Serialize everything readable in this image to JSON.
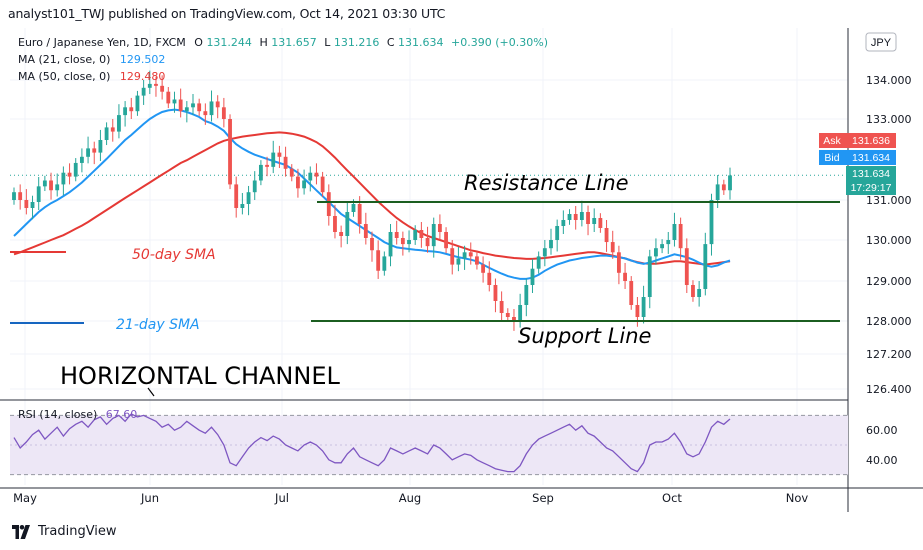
{
  "header": {
    "text": "analyst101_TWJ published on TradingView.com, Oct 14, 2021 03:30 UTC"
  },
  "footer": {
    "brand": "TradingView"
  },
  "colors": {
    "up": "#26a69a",
    "down": "#ef5350",
    "ma21": "#2196f3",
    "ma50": "#e53935",
    "line": "#1b5e20",
    "rsi": "#7e57c2",
    "rsi_band": "#ede7f6",
    "grid": "#f0f3fa",
    "axis_text": "#131722",
    "ask_bg": "#ef5350",
    "bid_bg": "#2196f3",
    "last_bg": "#26a69a"
  },
  "legend": {
    "symbol": "Euro / Japanese Yen, 1D, FXCM",
    "o_label": "O",
    "o_value": "131.244",
    "h_label": "H",
    "h_value": "131.657",
    "l_label": "L",
    "l_value": "131.216",
    "c_label": "C",
    "c_value": "131.634",
    "change": "+0.390 (+0.30%)",
    "ma21_label": "MA (21, close, 0)",
    "ma21_value": "129.502",
    "ma50_label": "MA (50, close, 0)",
    "ma50_value": "129.480",
    "rsi_label": "RSI (14, close)",
    "rsi_value": "67.60"
  },
  "annotations": {
    "resistance": "Resistance Line",
    "support": "Support Line",
    "sma50": "50-day SMA",
    "sma21": "21-day SMA",
    "channel": "HORIZONTAL CHANNEL"
  },
  "price_axis": {
    "currency": "JPY",
    "ask_label": "Ask",
    "ask_value": "131.636",
    "bid_label": "Bid",
    "bid_value": "131.634",
    "last_value": "131.634",
    "countdown": "17:29:17"
  },
  "chart_data": {
    "type": "candlestick",
    "title": "Euro / Japanese Yen, 1D, FXCM",
    "y_ticks": [
      {
        "label": "134.000",
        "value": 134.0
      },
      {
        "label": "133.000",
        "value": 133.0
      },
      {
        "label": "131.000",
        "value": 131.0
      },
      {
        "label": "130.000",
        "value": 130.0
      },
      {
        "label": "129.000",
        "value": 129.0
      },
      {
        "label": "128.000",
        "value": 128.0
      },
      {
        "label": "127.200",
        "value": 127.2
      },
      {
        "label": "126.400",
        "value": 126.4
      }
    ],
    "x_ticks": [
      "May",
      "Jun",
      "Jul",
      "Aug",
      "Sep",
      "Oct",
      "Nov"
    ],
    "ylim": [
      126.3,
      135.0
    ],
    "closes": [
      131.2,
      131.0,
      130.8,
      130.95,
      131.35,
      131.5,
      131.25,
      131.4,
      131.7,
      131.6,
      131.95,
      132.1,
      132.3,
      132.2,
      132.5,
      132.8,
      132.7,
      133.1,
      133.3,
      133.2,
      133.6,
      133.8,
      133.9,
      133.85,
      133.7,
      133.4,
      133.5,
      133.2,
      133.3,
      133.4,
      133.2,
      133.1,
      133.45,
      133.3,
      133.0,
      131.4,
      130.8,
      130.9,
      131.2,
      131.5,
      131.9,
      131.85,
      132.2,
      132.1,
      131.8,
      131.6,
      131.3,
      131.5,
      131.7,
      131.6,
      131.2,
      130.6,
      130.2,
      130.1,
      130.7,
      130.9,
      130.4,
      130.05,
      129.75,
      129.25,
      129.6,
      130.2,
      130.05,
      129.9,
      130.0,
      130.25,
      130.05,
      129.85,
      130.4,
      130.2,
      129.8,
      129.4,
      129.55,
      129.7,
      129.6,
      129.4,
      129.2,
      128.9,
      128.5,
      128.2,
      128.1,
      128.0,
      128.4,
      128.9,
      129.3,
      129.6,
      129.8,
      130.0,
      130.35,
      130.5,
      130.65,
      130.5,
      130.7,
      130.4,
      130.55,
      130.3,
      129.95,
      129.7,
      129.2,
      129.0,
      128.4,
      128.1,
      128.6,
      129.6,
      129.8,
      129.9,
      130.0,
      130.4,
      129.8,
      128.9,
      128.6,
      128.8,
      129.9,
      131.0,
      131.4,
      131.25,
      131.63
    ],
    "ma21": [
      130.1,
      130.25,
      130.4,
      130.55,
      130.7,
      130.82,
      130.92,
      131.0,
      131.1,
      131.2,
      131.32,
      131.45,
      131.6,
      131.75,
      131.9,
      132.05,
      132.2,
      132.35,
      132.5,
      132.62,
      132.75,
      132.88,
      133.0,
      133.1,
      133.18,
      133.22,
      133.24,
      133.22,
      133.18,
      133.12,
      133.05,
      132.95,
      132.9,
      132.82,
      132.72,
      132.55,
      132.4,
      132.3,
      132.22,
      132.15,
      132.1,
      132.05,
      132.0,
      131.95,
      131.9,
      131.8,
      131.7,
      131.55,
      131.4,
      131.25,
      131.1,
      130.95,
      130.8,
      130.65,
      130.55,
      130.45,
      130.35,
      130.25,
      130.15,
      130.05,
      129.95,
      129.88,
      129.82,
      129.8,
      129.78,
      129.76,
      129.75,
      129.73,
      129.72,
      129.7,
      129.66,
      129.62,
      129.58,
      129.55,
      129.52,
      129.48,
      129.4,
      129.32,
      129.25,
      129.18,
      129.12,
      129.08,
      129.05,
      129.05,
      129.08,
      129.15,
      129.25,
      129.33,
      129.4,
      129.45,
      129.5,
      129.53,
      129.56,
      129.58,
      129.6,
      129.62,
      129.62,
      129.6,
      129.58,
      129.55,
      129.5,
      129.45,
      129.42,
      129.45,
      129.5,
      129.55,
      129.6,
      129.65,
      129.62,
      129.58,
      129.52,
      129.45,
      129.38,
      129.35,
      129.38,
      129.45,
      129.5
    ],
    "ma50": [
      129.65,
      129.7,
      129.76,
      129.82,
      129.88,
      129.94,
      130.0,
      130.06,
      130.12,
      130.2,
      130.28,
      130.36,
      130.45,
      130.55,
      130.65,
      130.75,
      130.85,
      130.95,
      131.05,
      131.15,
      131.25,
      131.35,
      131.45,
      131.55,
      131.65,
      131.75,
      131.85,
      131.95,
      132.02,
      132.1,
      132.18,
      132.26,
      132.34,
      132.42,
      132.48,
      132.52,
      132.55,
      132.58,
      132.6,
      132.62,
      132.64,
      132.66,
      132.67,
      132.68,
      132.67,
      132.65,
      132.62,
      132.58,
      132.52,
      132.45,
      132.35,
      132.22,
      132.08,
      131.92,
      131.76,
      131.6,
      131.44,
      131.28,
      131.12,
      130.96,
      130.82,
      130.68,
      130.55,
      130.44,
      130.34,
      130.25,
      130.17,
      130.1,
      130.05,
      130.0,
      129.95,
      129.9,
      129.85,
      129.8,
      129.75,
      129.72,
      129.68,
      129.65,
      129.62,
      129.6,
      129.58,
      129.56,
      129.55,
      129.54,
      129.54,
      129.55,
      129.56,
      129.58,
      129.6,
      129.62,
      129.64,
      129.66,
      129.68,
      129.7,
      129.7,
      129.68,
      129.65,
      129.62,
      129.58,
      129.55,
      129.5,
      129.46,
      129.43,
      129.42,
      129.42,
      129.44,
      129.46,
      129.48,
      129.48,
      129.46,
      129.44,
      129.42,
      129.4,
      129.42,
      129.44,
      129.46,
      129.48
    ],
    "rsi": [
      55,
      48,
      52,
      57,
      60,
      54,
      58,
      62,
      56,
      61,
      64,
      66,
      62,
      67,
      69,
      64,
      68,
      70,
      66,
      71,
      69,
      70,
      68,
      66,
      62,
      64,
      60,
      62,
      66,
      63,
      60,
      58,
      62,
      57,
      50,
      38,
      36,
      42,
      48,
      52,
      55,
      53,
      56,
      54,
      50,
      48,
      46,
      50,
      52,
      50,
      46,
      40,
      38,
      38,
      44,
      48,
      42,
      40,
      38,
      36,
      40,
      48,
      46,
      44,
      46,
      48,
      46,
      44,
      50,
      48,
      44,
      40,
      42,
      44,
      43,
      40,
      38,
      36,
      34,
      33,
      32,
      32,
      36,
      44,
      50,
      54,
      56,
      58,
      60,
      62,
      64,
      60,
      63,
      58,
      56,
      52,
      48,
      46,
      42,
      38,
      34,
      32,
      38,
      50,
      52,
      52,
      54,
      58,
      52,
      44,
      42,
      44,
      52,
      62,
      66,
      64,
      67.6
    ],
    "rsi_ticks": [
      {
        "label": "60.00",
        "value": 60
      },
      {
        "label": "40.00",
        "value": 40
      }
    ],
    "resistance_level": 130.95,
    "support_level": 128.0
  }
}
